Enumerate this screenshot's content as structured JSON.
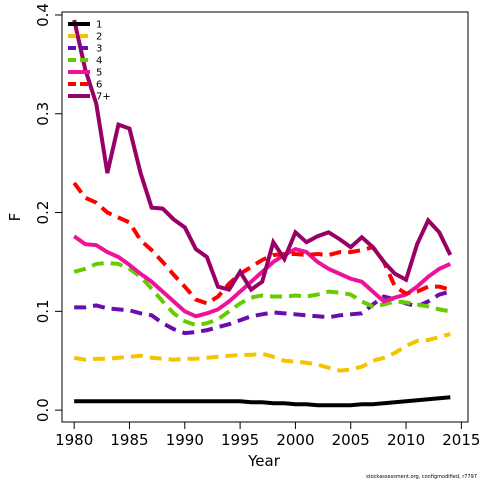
{
  "chart_data": {
    "type": "line",
    "x_label": "Year",
    "y_label": "F",
    "footnote": "stockassessment.org, configmodified, r7797",
    "x": [
      1980,
      1981,
      1982,
      1983,
      1984,
      1985,
      1986,
      1987,
      1988,
      1989,
      1990,
      1991,
      1992,
      1993,
      1994,
      1995,
      1996,
      1997,
      1998,
      1999,
      2000,
      2001,
      2002,
      2003,
      2004,
      2005,
      2006,
      2007,
      2008,
      2009,
      2010,
      2011,
      2012,
      2013,
      2014
    ],
    "series": [
      {
        "name": "1",
        "color": "#000000",
        "dash": false,
        "values": [
          0.009,
          0.009,
          0.009,
          0.009,
          0.009,
          0.009,
          0.009,
          0.009,
          0.009,
          0.009,
          0.009,
          0.009,
          0.009,
          0.009,
          0.009,
          0.009,
          0.008,
          0.008,
          0.007,
          0.007,
          0.006,
          0.006,
          0.005,
          0.005,
          0.005,
          0.005,
          0.006,
          0.006,
          0.007,
          0.008,
          0.009,
          0.01,
          0.011,
          0.012,
          0.013
        ]
      },
      {
        "name": "2",
        "color": "#f5c400",
        "dash": true,
        "values": [
          0.053,
          0.051,
          0.052,
          0.052,
          0.053,
          0.054,
          0.055,
          0.053,
          0.052,
          0.051,
          0.052,
          0.052,
          0.053,
          0.054,
          0.055,
          0.056,
          0.056,
          0.057,
          0.054,
          0.05,
          0.049,
          0.048,
          0.046,
          0.043,
          0.04,
          0.041,
          0.044,
          0.05,
          0.053,
          0.058,
          0.065,
          0.07,
          0.071,
          0.074,
          0.077
        ]
      },
      {
        "name": "3",
        "color": "#6a0dad",
        "dash": true,
        "values": [
          0.104,
          0.104,
          0.106,
          0.103,
          0.102,
          0.101,
          0.098,
          0.096,
          0.088,
          0.082,
          0.078,
          0.079,
          0.081,
          0.084,
          0.087,
          0.091,
          0.095,
          0.097,
          0.099,
          0.098,
          0.097,
          0.096,
          0.095,
          0.094,
          0.096,
          0.097,
          0.098,
          0.107,
          0.115,
          0.112,
          0.108,
          0.105,
          0.11,
          0.117,
          0.12
        ]
      },
      {
        "name": "4",
        "color": "#66cc00",
        "dash": true,
        "values": [
          0.14,
          0.143,
          0.148,
          0.149,
          0.148,
          0.143,
          0.135,
          0.123,
          0.11,
          0.098,
          0.09,
          0.086,
          0.088,
          0.092,
          0.1,
          0.108,
          0.114,
          0.116,
          0.115,
          0.115,
          0.116,
          0.115,
          0.117,
          0.12,
          0.119,
          0.117,
          0.11,
          0.105,
          0.107,
          0.11,
          0.109,
          0.107,
          0.105,
          0.102,
          0.1
        ]
      },
      {
        "name": "5",
        "color": "#ee1199",
        "dash": false,
        "values": [
          0.176,
          0.168,
          0.167,
          0.16,
          0.155,
          0.147,
          0.138,
          0.13,
          0.12,
          0.11,
          0.1,
          0.095,
          0.098,
          0.102,
          0.11,
          0.12,
          0.13,
          0.14,
          0.15,
          0.157,
          0.163,
          0.16,
          0.15,
          0.143,
          0.138,
          0.133,
          0.13,
          0.12,
          0.11,
          0.114,
          0.117,
          0.125,
          0.135,
          0.143,
          0.148
        ]
      },
      {
        "name": "6",
        "color": "#ff0000",
        "dash": true,
        "values": [
          0.23,
          0.215,
          0.21,
          0.2,
          0.195,
          0.19,
          0.172,
          0.162,
          0.15,
          0.137,
          0.125,
          0.112,
          0.108,
          0.115,
          0.128,
          0.138,
          0.145,
          0.152,
          0.157,
          0.158,
          0.158,
          0.157,
          0.158,
          0.157,
          0.16,
          0.16,
          0.162,
          0.165,
          0.15,
          0.125,
          0.118,
          0.12,
          0.125,
          0.125,
          0.122
        ]
      },
      {
        "name": "7+",
        "color": "#990066",
        "dash": false,
        "values": [
          0.395,
          0.345,
          0.31,
          0.24,
          0.289,
          0.285,
          0.24,
          0.205,
          0.204,
          0.193,
          0.185,
          0.163,
          0.155,
          0.125,
          0.122,
          0.14,
          0.122,
          0.13,
          0.17,
          0.153,
          0.18,
          0.17,
          0.176,
          0.18,
          0.173,
          0.165,
          0.175,
          0.165,
          0.15,
          0.138,
          0.132,
          0.168,
          0.192,
          0.18,
          0.157
        ]
      }
    ],
    "xlim": [
      1978.9,
      2015.6
    ],
    "xticks": [
      1980,
      1985,
      1990,
      1995,
      2000,
      2005,
      2010,
      2015
    ],
    "ylim": [
      -0.012,
      0.403
    ],
    "yticks": [
      {
        "value": 0,
        "label": "0.0"
      },
      0.1,
      0.2,
      0.3,
      0.4
    ],
    "grid": false,
    "legend": "top-left"
  }
}
